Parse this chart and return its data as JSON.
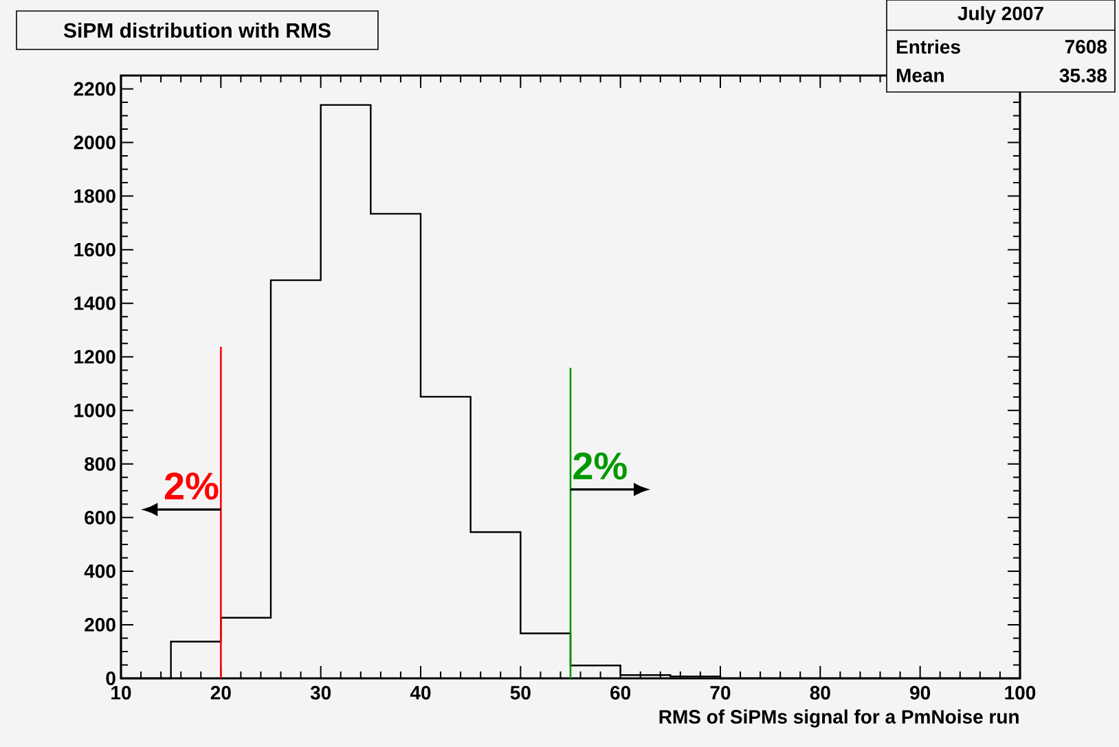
{
  "chart_data": {
    "type": "histogram",
    "title": "SiPM distribution with RMS",
    "xlabel": "RMS of SiPMs signal for a PmNoise run",
    "bins": [
      10,
      15,
      20,
      25,
      30,
      35,
      40,
      45,
      50,
      55,
      60,
      65,
      70,
      75,
      80,
      85,
      90,
      95,
      100
    ],
    "values": [
      0,
      137,
      226,
      1486,
      2140,
      1734,
      1051,
      546,
      168,
      48,
      12,
      7,
      0,
      0,
      0,
      0,
      0,
      0
    ],
    "color": "#000000",
    "xlim": [
      10,
      100
    ],
    "xticks": [
      10,
      20,
      30,
      40,
      50,
      60,
      70,
      80,
      90,
      100
    ],
    "ylim": [
      0,
      2250
    ],
    "yticks": [
      0,
      200,
      400,
      600,
      800,
      1000,
      1200,
      1400,
      1600,
      1800,
      2000,
      2200
    ],
    "ref_lines": [
      {
        "axis": "x",
        "value": 20,
        "color": "#ff0000"
      },
      {
        "axis": "x",
        "value": 55,
        "color": "#009900"
      }
    ],
    "annotations": [
      "July 2007",
      "Entries",
      "7608",
      "Mean",
      "35.38",
      {
        "text": "2%",
        "x": 20,
        "y": 630
      },
      {
        "text": "2%",
        "x": 55,
        "y": 705
      }
    ],
    "grid": false
  }
}
